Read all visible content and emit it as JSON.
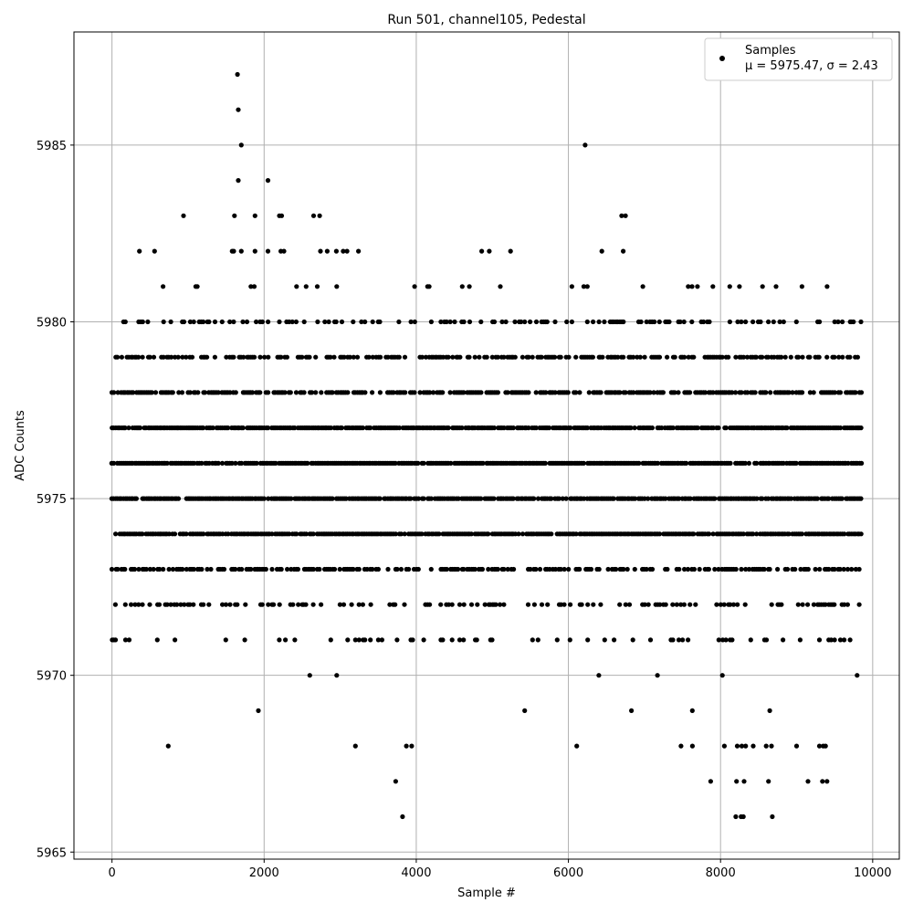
{
  "chart_data": {
    "type": "scatter",
    "title": "Run 501, channel105, Pedestal",
    "xlabel": "Sample #",
    "ylabel": "ADC Counts",
    "xlim": [
      -500,
      10350
    ],
    "ylim": [
      5964.8,
      5988.2
    ],
    "x_ticks": [
      0,
      2000,
      4000,
      6000,
      8000,
      10000
    ],
    "y_ticks": [
      5965,
      5970,
      5975,
      5980,
      5985
    ],
    "grid": true,
    "legend": {
      "placement": "top-right",
      "marker_color": "#000000",
      "line1": "Samples",
      "line2": "μ = 5975.47, σ = 2.43"
    },
    "series": [
      {
        "name": "Samples",
        "color": "#000000",
        "outliers": [
          [
            1650,
            5987
          ],
          [
            1660,
            5986
          ],
          [
            1700,
            5985
          ],
          [
            1660,
            5984
          ],
          [
            2050,
            5984
          ],
          [
            6220,
            5985
          ],
          [
            940,
            5983
          ],
          [
            1610,
            5983
          ],
          [
            1880,
            5983
          ],
          [
            2200,
            5983
          ],
          [
            2230,
            5983
          ],
          [
            2650,
            5983
          ],
          [
            2730,
            5983
          ],
          [
            6700,
            5983
          ],
          [
            6750,
            5983
          ],
          [
            360,
            5982
          ],
          [
            560,
            5982
          ],
          [
            1580,
            5982
          ],
          [
            1600,
            5982
          ],
          [
            1700,
            5982
          ],
          [
            1880,
            5982
          ],
          [
            2050,
            5982
          ],
          [
            2220,
            5982
          ],
          [
            2260,
            5982
          ],
          [
            2740,
            5982
          ],
          [
            2830,
            5982
          ],
          [
            2950,
            5982
          ],
          [
            3040,
            5982
          ],
          [
            3090,
            5982
          ],
          [
            3240,
            5982
          ],
          [
            4860,
            5982
          ],
          [
            4960,
            5982
          ],
          [
            5240,
            5982
          ],
          [
            6440,
            5982
          ],
          [
            6720,
            5982
          ],
          [
            740,
            5968
          ],
          [
            3200,
            5968
          ],
          [
            3870,
            5968
          ],
          [
            3940,
            5968
          ],
          [
            6110,
            5968
          ],
          [
            7480,
            5968
          ],
          [
            7630,
            5968
          ],
          [
            8050,
            5968
          ],
          [
            8220,
            5968
          ],
          [
            8280,
            5968
          ],
          [
            8330,
            5968
          ],
          [
            8430,
            5968
          ],
          [
            8600,
            5968
          ],
          [
            8670,
            5968
          ],
          [
            9000,
            5968
          ],
          [
            9300,
            5968
          ],
          [
            9350,
            5968
          ],
          [
            9380,
            5968
          ],
          [
            3730,
            5967
          ],
          [
            7870,
            5967
          ],
          [
            8210,
            5967
          ],
          [
            8310,
            5967
          ],
          [
            8630,
            5967
          ],
          [
            9150,
            5967
          ],
          [
            9340,
            5967
          ],
          [
            9400,
            5967
          ],
          [
            3820,
            5966
          ],
          [
            8200,
            5966
          ],
          [
            8270,
            5966
          ],
          [
            8300,
            5966
          ],
          [
            8680,
            5966
          ]
        ],
        "regime_sample_range": [
          0,
          9850
        ]
      }
    ]
  }
}
